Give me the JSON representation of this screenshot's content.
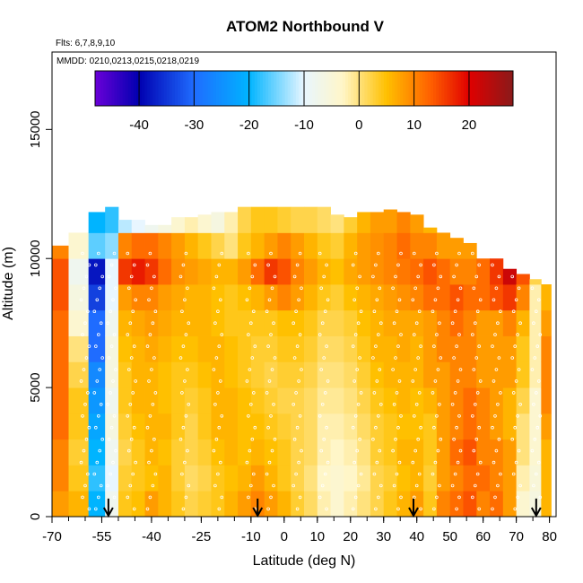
{
  "chart_data": {
    "type": "heatmap",
    "title": "ATOM2 Northbound V",
    "subtitle_flights": "Flts: 6,7,8,9,10",
    "subtitle_dates": "MMDD: 0210,0213,0215,0218,0219",
    "xlabel": "Latitude (deg N)",
    "ylabel": "Altitude (m)",
    "xlim": [
      -70,
      82
    ],
    "ylim": [
      0,
      18000
    ],
    "x_ticks": [
      -70,
      -55,
      -40,
      -25,
      -10,
      0,
      10,
      20,
      30,
      40,
      50,
      60,
      70,
      80
    ],
    "x_tick_labels": [
      "-70",
      "-55",
      "-40",
      "-25",
      "-10",
      "0",
      "10",
      "20",
      "30",
      "40",
      "50",
      "60",
      "70",
      "80"
    ],
    "y_ticks": [
      0,
      5000,
      10000,
      15000
    ],
    "y_tick_labels": [
      "0",
      "5000",
      "10000",
      "15000"
    ],
    "colorbar": {
      "range": [
        -48,
        28
      ],
      "ticks": [
        -40,
        -30,
        -20,
        -10,
        0,
        10,
        20
      ],
      "tick_labels": [
        "-40",
        "-30",
        "-20",
        "-10",
        "0",
        "10",
        "20"
      ],
      "colors": [
        "#6a00d8",
        "#0000b0",
        "#1f6cff",
        "#00b4ff",
        "#e8f6ff",
        "#fff6c8",
        "#ffc000",
        "#ff6000",
        "#e00000",
        "#8a1a1a"
      ]
    },
    "latitude_columns": [
      -68,
      -62,
      -56,
      -52,
      -48,
      -44,
      -40,
      -36,
      -32,
      -28,
      -24,
      -20,
      -16,
      -12,
      -8,
      -4,
      0,
      4,
      8,
      12,
      16,
      20,
      24,
      28,
      32,
      36,
      40,
      44,
      48,
      52,
      56,
      60,
      64,
      68,
      72,
      76,
      79
    ],
    "altitude_bins": [
      500,
      1500,
      2500,
      3500,
      4500,
      5500,
      6500,
      7500,
      8500,
      9500,
      10500,
      11500
    ],
    "column_top_altitude": [
      10500,
      11000,
      11800,
      12000,
      11500,
      11500,
      11300,
      11300,
      11600,
      11600,
      11700,
      11800,
      11800,
      12200,
      12600,
      12300,
      12100,
      12000,
      12000,
      12000,
      11700,
      11600,
      11800,
      11800,
      11900,
      11800,
      11700,
      11200,
      11000,
      10800,
      10600,
      10000,
      10000,
      9600,
      9400,
      9200,
      9000
    ],
    "v_values": [
      [
        8,
        6,
        -20,
        -8,
        4,
        5,
        8,
        6,
        4,
        2,
        3,
        4,
        6,
        8,
        10,
        8,
        6,
        3,
        1,
        -2,
        -4,
        -2,
        0,
        2,
        4,
        6,
        8,
        4,
        10,
        12,
        14,
        10,
        12,
        8,
        -4,
        -6,
        6
      ],
      [
        10,
        4,
        -18,
        -10,
        3,
        4,
        5,
        6,
        3,
        1,
        2,
        4,
        5,
        6,
        8,
        6,
        4,
        2,
        0,
        -3,
        -4,
        -3,
        -1,
        2,
        3,
        5,
        6,
        3,
        8,
        10,
        12,
        12,
        10,
        8,
        -2,
        -5,
        6
      ],
      [
        10,
        3,
        -20,
        -8,
        2,
        4,
        6,
        5,
        3,
        2,
        3,
        5,
        6,
        5,
        6,
        5,
        4,
        2,
        1,
        -2,
        -3,
        -2,
        0,
        3,
        4,
        6,
        6,
        4,
        8,
        12,
        14,
        10,
        10,
        8,
        0,
        -4,
        6
      ],
      [
        12,
        4,
        -22,
        -6,
        3,
        5,
        6,
        6,
        4,
        2,
        4,
        6,
        6,
        5,
        5,
        4,
        3,
        2,
        1,
        -2,
        -2,
        -1,
        1,
        3,
        4,
        5,
        5,
        4,
        8,
        10,
        12,
        10,
        8,
        6,
        0,
        -4,
        8
      ],
      [
        12,
        4,
        -24,
        -8,
        4,
        6,
        6,
        5,
        4,
        3,
        4,
        6,
        6,
        5,
        4,
        3,
        2,
        2,
        1,
        -1,
        -1,
        0,
        2,
        4,
        5,
        6,
        5,
        6,
        8,
        10,
        12,
        10,
        8,
        6,
        2,
        -4,
        10
      ],
      [
        12,
        2,
        -26,
        -6,
        4,
        6,
        6,
        5,
        4,
        4,
        5,
        6,
        5,
        4,
        3,
        2,
        3,
        3,
        2,
        0,
        0,
        1,
        3,
        5,
        6,
        6,
        6,
        8,
        8,
        10,
        10,
        8,
        8,
        8,
        4,
        -2,
        10
      ],
      [
        12,
        0,
        -30,
        -6,
        5,
        6,
        7,
        6,
        5,
        5,
        6,
        6,
        5,
        4,
        3,
        3,
        4,
        4,
        3,
        1,
        1,
        2,
        4,
        6,
        6,
        7,
        6,
        8,
        10,
        10,
        10,
        8,
        8,
        8,
        4,
        -2,
        10
      ],
      [
        12,
        -4,
        -30,
        -8,
        6,
        7,
        8,
        7,
        6,
        6,
        6,
        5,
        4,
        4,
        4,
        4,
        5,
        5,
        4,
        2,
        2,
        3,
        5,
        6,
        7,
        7,
        7,
        8,
        10,
        12,
        10,
        8,
        8,
        10,
        6,
        -2,
        8
      ],
      [
        14,
        -6,
        -34,
        -10,
        8,
        10,
        10,
        8,
        7,
        6,
        6,
        5,
        4,
        5,
        6,
        8,
        10,
        8,
        6,
        4,
        3,
        5,
        6,
        7,
        8,
        9,
        10,
        12,
        12,
        14,
        12,
        12,
        14,
        16,
        10,
        -2,
        6
      ],
      [
        14,
        -8,
        -38,
        -10,
        16,
        18,
        16,
        12,
        9,
        8,
        7,
        6,
        6,
        8,
        12,
        16,
        14,
        10,
        8,
        6,
        5,
        7,
        8,
        9,
        10,
        11,
        12,
        14,
        12,
        10,
        10,
        12,
        16,
        22,
        14,
        2,
        6
      ],
      [
        10,
        -4,
        -16,
        -14,
        10,
        12,
        12,
        10,
        8,
        6,
        4,
        2,
        0,
        4,
        6,
        8,
        10,
        8,
        6,
        4,
        3,
        6,
        8,
        9,
        10,
        12,
        10,
        10,
        8,
        8,
        8,
        6,
        4,
        2,
        2,
        2,
        2
      ],
      [
        -14,
        -16,
        -20,
        -18,
        -12,
        -10,
        -8,
        -6,
        -4,
        -2,
        -4,
        -6,
        -2,
        2,
        4,
        4,
        3,
        2,
        2,
        1,
        0,
        3,
        6,
        8,
        8,
        10,
        8,
        6,
        4,
        4,
        4,
        4,
        4,
        4,
        4,
        4,
        4
      ]
    ],
    "flight_markers": {
      "latitudes": [
        -53,
        -8,
        39,
        76
      ],
      "icon": "down-arrow-icon"
    },
    "colors": {
      "background": "#ffffff",
      "frame": "#000000",
      "flight_track": "#ffffff"
    }
  }
}
